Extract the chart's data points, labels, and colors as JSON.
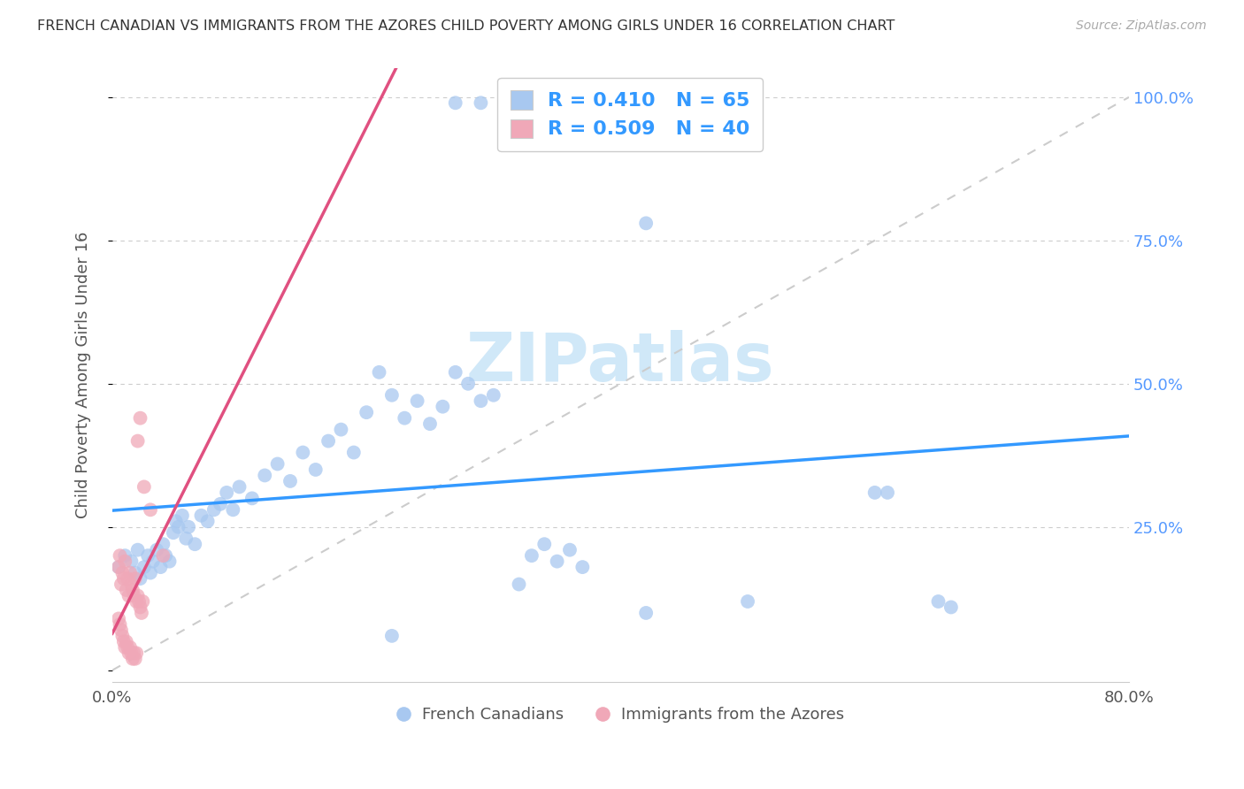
{
  "title": "FRENCH CANADIAN VS IMMIGRANTS FROM THE AZORES CHILD POVERTY AMONG GIRLS UNDER 16 CORRELATION CHART",
  "source": "Source: ZipAtlas.com",
  "ylabel": "Child Poverty Among Girls Under 16",
  "xlim": [
    0.0,
    0.8
  ],
  "ylim": [
    -0.02,
    1.05
  ],
  "blue_R": 0.41,
  "blue_N": 65,
  "pink_R": 0.509,
  "pink_N": 40,
  "blue_color": "#a8c8f0",
  "pink_color": "#f0a8b8",
  "blue_line_color": "#3399ff",
  "pink_line_color": "#e05080",
  "watermark": "ZIPatlas",
  "watermark_color": "#d0e8f8",
  "grid_color": "#cccccc",
  "background_color": "#ffffff",
  "blue_scatter": [
    [
      0.005,
      0.18
    ],
    [
      0.01,
      0.2
    ],
    [
      0.015,
      0.19
    ],
    [
      0.018,
      0.17
    ],
    [
      0.02,
      0.21
    ],
    [
      0.022,
      0.16
    ],
    [
      0.025,
      0.18
    ],
    [
      0.028,
      0.2
    ],
    [
      0.03,
      0.17
    ],
    [
      0.032,
      0.19
    ],
    [
      0.035,
      0.21
    ],
    [
      0.038,
      0.18
    ],
    [
      0.04,
      0.22
    ],
    [
      0.042,
      0.2
    ],
    [
      0.045,
      0.19
    ],
    [
      0.048,
      0.24
    ],
    [
      0.05,
      0.26
    ],
    [
      0.052,
      0.25
    ],
    [
      0.055,
      0.27
    ],
    [
      0.058,
      0.23
    ],
    [
      0.06,
      0.25
    ],
    [
      0.065,
      0.22
    ],
    [
      0.07,
      0.27
    ],
    [
      0.075,
      0.26
    ],
    [
      0.08,
      0.28
    ],
    [
      0.085,
      0.29
    ],
    [
      0.09,
      0.31
    ],
    [
      0.095,
      0.28
    ],
    [
      0.1,
      0.32
    ],
    [
      0.11,
      0.3
    ],
    [
      0.12,
      0.34
    ],
    [
      0.13,
      0.36
    ],
    [
      0.14,
      0.33
    ],
    [
      0.15,
      0.38
    ],
    [
      0.16,
      0.35
    ],
    [
      0.17,
      0.4
    ],
    [
      0.18,
      0.42
    ],
    [
      0.19,
      0.38
    ],
    [
      0.2,
      0.45
    ],
    [
      0.21,
      0.52
    ],
    [
      0.22,
      0.48
    ],
    [
      0.23,
      0.44
    ],
    [
      0.24,
      0.47
    ],
    [
      0.25,
      0.43
    ],
    [
      0.26,
      0.46
    ],
    [
      0.27,
      0.52
    ],
    [
      0.28,
      0.5
    ],
    [
      0.29,
      0.47
    ],
    [
      0.3,
      0.48
    ],
    [
      0.32,
      0.15
    ],
    [
      0.33,
      0.2
    ],
    [
      0.34,
      0.22
    ],
    [
      0.35,
      0.19
    ],
    [
      0.36,
      0.21
    ],
    [
      0.37,
      0.18
    ],
    [
      0.42,
      0.1
    ],
    [
      0.27,
      0.99
    ],
    [
      0.29,
      0.99
    ],
    [
      0.42,
      0.78
    ],
    [
      0.5,
      0.12
    ],
    [
      0.6,
      0.31
    ],
    [
      0.61,
      0.31
    ],
    [
      0.65,
      0.12
    ],
    [
      0.66,
      0.11
    ],
    [
      0.22,
      0.06
    ]
  ],
  "pink_scatter": [
    [
      0.005,
      0.18
    ],
    [
      0.006,
      0.2
    ],
    [
      0.007,
      0.15
    ],
    [
      0.008,
      0.17
    ],
    [
      0.009,
      0.16
    ],
    [
      0.01,
      0.19
    ],
    [
      0.011,
      0.14
    ],
    [
      0.012,
      0.16
    ],
    [
      0.013,
      0.13
    ],
    [
      0.014,
      0.17
    ],
    [
      0.015,
      0.15
    ],
    [
      0.016,
      0.14
    ],
    [
      0.017,
      0.13
    ],
    [
      0.018,
      0.16
    ],
    [
      0.019,
      0.12
    ],
    [
      0.02,
      0.13
    ],
    [
      0.021,
      0.12
    ],
    [
      0.022,
      0.11
    ],
    [
      0.023,
      0.1
    ],
    [
      0.024,
      0.12
    ],
    [
      0.005,
      0.09
    ],
    [
      0.006,
      0.08
    ],
    [
      0.007,
      0.07
    ],
    [
      0.008,
      0.06
    ],
    [
      0.009,
      0.05
    ],
    [
      0.01,
      0.04
    ],
    [
      0.011,
      0.05
    ],
    [
      0.012,
      0.04
    ],
    [
      0.013,
      0.03
    ],
    [
      0.014,
      0.04
    ],
    [
      0.015,
      0.03
    ],
    [
      0.016,
      0.02
    ],
    [
      0.017,
      0.03
    ],
    [
      0.018,
      0.02
    ],
    [
      0.019,
      0.03
    ],
    [
      0.02,
      0.4
    ],
    [
      0.022,
      0.44
    ],
    [
      0.025,
      0.32
    ],
    [
      0.03,
      0.28
    ],
    [
      0.04,
      0.2
    ]
  ]
}
